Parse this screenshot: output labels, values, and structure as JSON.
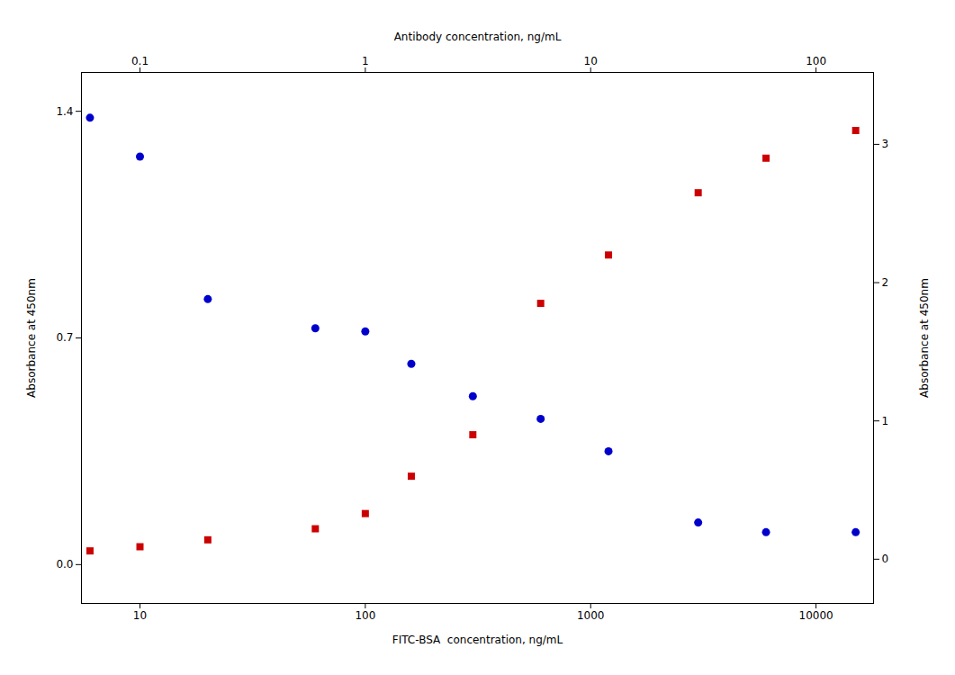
{
  "chart_data": {
    "type": "scatter",
    "log": "x",
    "x": [
      6,
      10,
      20,
      60,
      100,
      160,
      300,
      600,
      1200,
      3000,
      6000,
      15000
    ],
    "xlabel": "FITC-BSA  concentration, ng/mL",
    "xlim": [
      5.5,
      18000
    ],
    "xticks": [
      10,
      100,
      1000,
      10000
    ],
    "x2label": "Antibody concentration, ng/mL",
    "x2lim": [
      0.055,
      180
    ],
    "x2ticks": [
      0.1,
      1,
      10,
      100
    ],
    "ylabel": "Absorbance at 450nm",
    "ylim": [
      -0.12,
      1.52
    ],
    "yticks": [
      {
        "value": 0.0,
        "label": "0.0"
      },
      0.7,
      1.4
    ],
    "y2label": "Absorbance at 450nm",
    "y2lim": [
      -0.32,
      3.52
    ],
    "y2ticks": [
      0,
      1,
      2,
      3
    ],
    "series": [
      {
        "color": "#0000CD",
        "marker": "circle",
        "values": [
          1.38,
          1.26,
          0.82,
          0.73,
          0.72,
          0.62,
          0.52,
          0.45,
          0.35,
          0.13,
          0.1,
          0.1
        ]
      },
      {
        "color": "#CC0000",
        "marker": "square",
        "axis": "y2",
        "values": [
          0.06,
          0.09,
          0.14,
          0.22,
          0.33,
          0.6,
          0.9,
          1.85,
          2.2,
          2.65,
          2.9,
          3.1
        ]
      }
    ]
  }
}
